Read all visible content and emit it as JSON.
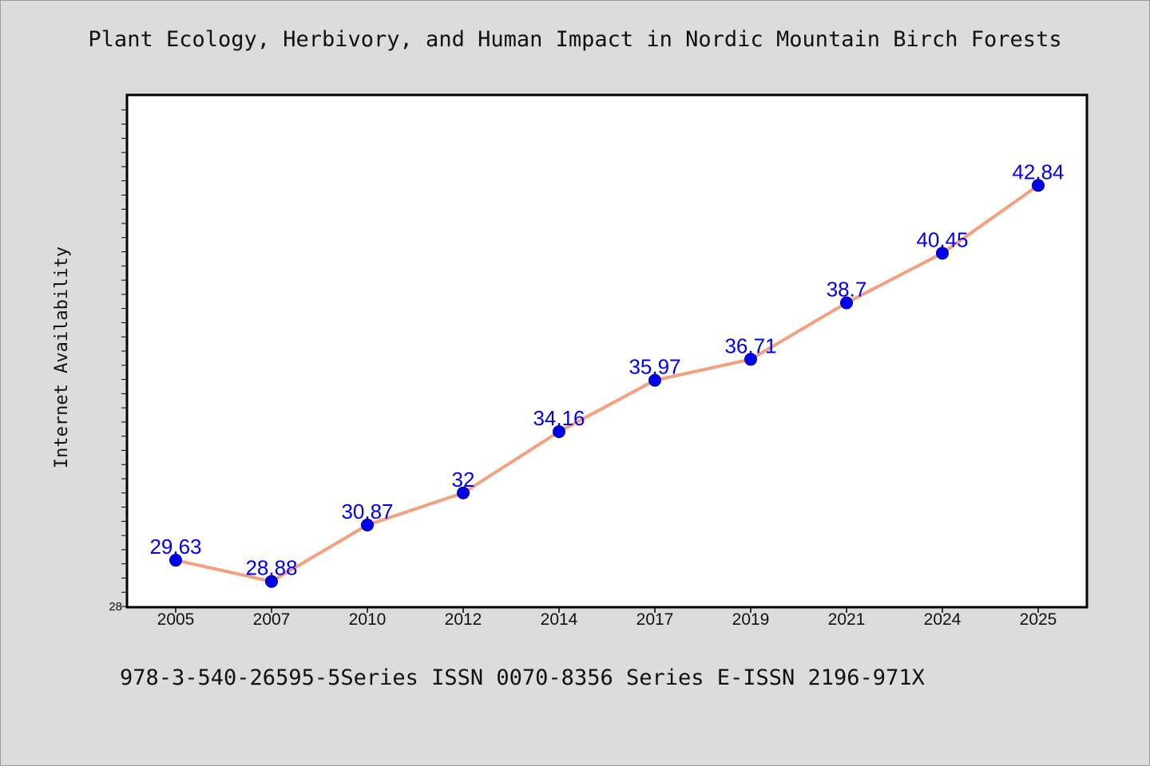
{
  "chart_data": {
    "type": "line",
    "title": "Plant Ecology, Herbivory, and Human Impact in Nordic Mountain Birch Forests",
    "xlabel": "",
    "ylabel": "Internet Availability",
    "categories": [
      "2005",
      "2007",
      "2010",
      "2012",
      "2014",
      "2017",
      "2019",
      "2021",
      "2024",
      "2025"
    ],
    "values": [
      29.63,
      28.88,
      30.87,
      32,
      34.16,
      35.97,
      36.71,
      38.7,
      40.45,
      42.84
    ],
    "data_labels": [
      "29.63",
      "28.88",
      "30.87",
      "32",
      "34.16",
      "35.97",
      "36.71",
      "38.7",
      "40.45",
      "42.84"
    ],
    "ylim": [
      28,
      46
    ],
    "y_tick_labels": [
      "28"
    ],
    "grid": false,
    "legend": "none",
    "line_color": "#f4a07e",
    "marker_color": "#0000ee",
    "label_color": "#0000ee"
  },
  "footer": "978-3-540-26595-5Series ISSN 0070-8356 Series E-ISSN 2196-971X"
}
